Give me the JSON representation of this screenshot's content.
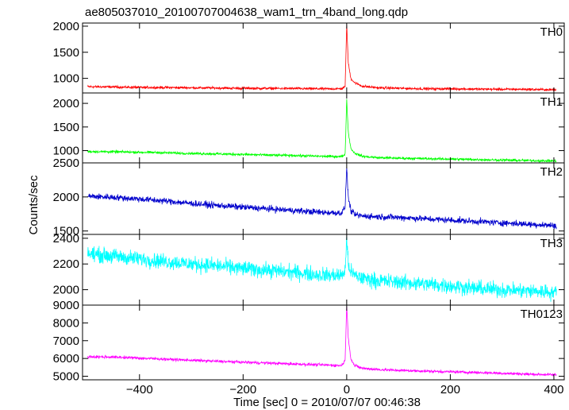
{
  "chart_data": {
    "title": "ae805037010_20100707004638_wam1_trn_4band_long.qdp",
    "xlabel": "Time [sec] 0 = 2010/07/07 00:46:38",
    "ylabel": "Counts/sec",
    "xlim": [
      -510,
      420
    ],
    "x_ticks": [
      -400,
      -200,
      0,
      200,
      400
    ],
    "x_tick_labels": [
      "−400",
      "−200",
      "0",
      "200",
      "400"
    ],
    "grid": false,
    "panels": [
      {
        "type": "line",
        "label": "TH0",
        "color": "#ff0000",
        "ylim": [
          720,
          2060
        ],
        "y_ticks": [
          1000,
          1500,
          2000
        ],
        "y_tick_labels": [
          "1000",
          "1500",
          "2000"
        ],
        "series": {
          "x": [
            -500,
            -450,
            -400,
            -350,
            -300,
            -250,
            -200,
            -150,
            -100,
            -50,
            -10,
            -3,
            0,
            3,
            8,
            15,
            30,
            60,
            100,
            150,
            200,
            250,
            300,
            350,
            405
          ],
          "y": [
            840,
            835,
            825,
            825,
            820,
            815,
            810,
            808,
            805,
            800,
            800,
            840,
            2030,
            1300,
            1000,
            920,
            850,
            820,
            810,
            800,
            800,
            795,
            790,
            790,
            780
          ],
          "noise": 18
        }
      },
      {
        "type": "line",
        "label": "TH1",
        "color": "#00ff00",
        "ylim": [
          740,
          2220
        ],
        "y_ticks": [
          1000,
          1500,
          2000
        ],
        "y_tick_labels": [
          "1000",
          "1500",
          "2000"
        ],
        "series": {
          "x": [
            -500,
            -450,
            -400,
            -350,
            -300,
            -250,
            -200,
            -150,
            -100,
            -50,
            -10,
            -3,
            0,
            3,
            8,
            15,
            30,
            60,
            100,
            150,
            200,
            250,
            300,
            350,
            405
          ],
          "y": [
            980,
            975,
            965,
            955,
            940,
            930,
            920,
            905,
            895,
            880,
            875,
            920,
            2080,
            1400,
            1050,
            950,
            880,
            850,
            840,
            830,
            820,
            810,
            800,
            790,
            780
          ],
          "noise": 20
        }
      },
      {
        "type": "line",
        "label": "TH2",
        "color": "#0000cc",
        "ylim": [
          1450,
          2500
        ],
        "y_ticks": [
          1500,
          2000,
          2500
        ],
        "y_tick_labels": [
          "1500",
          "2000",
          "2500"
        ],
        "series": {
          "x": [
            -500,
            -450,
            -400,
            -350,
            -300,
            -250,
            -200,
            -150,
            -100,
            -50,
            -10,
            -3,
            0,
            3,
            8,
            15,
            30,
            60,
            100,
            150,
            200,
            250,
            300,
            350,
            405
          ],
          "y": [
            2010,
            1995,
            1970,
            1940,
            1905,
            1875,
            1850,
            1825,
            1800,
            1775,
            1765,
            1850,
            2450,
            2000,
            1800,
            1740,
            1720,
            1710,
            1700,
            1680,
            1660,
            1640,
            1620,
            1600,
            1580
          ],
          "noise": 35
        }
      },
      {
        "type": "line",
        "label": "TH3",
        "color": "#00ffff",
        "ylim": [
          1880,
          2430
        ],
        "y_ticks": [
          2000,
          2200,
          2400
        ],
        "y_tick_labels": [
          "2000",
          "2200",
          "2400"
        ],
        "series": {
          "x": [
            -500,
            -450,
            -400,
            -350,
            -300,
            -250,
            -200,
            -150,
            -100,
            -50,
            -10,
            -3,
            0,
            3,
            8,
            15,
            30,
            60,
            100,
            150,
            200,
            250,
            300,
            350,
            405
          ],
          "y": [
            2280,
            2260,
            2240,
            2220,
            2200,
            2185,
            2165,
            2150,
            2135,
            2115,
            2110,
            2150,
            2400,
            2200,
            2140,
            2110,
            2090,
            2070,
            2060,
            2045,
            2030,
            2010,
            2000,
            1990,
            1980
          ],
          "noise": 45
        }
      },
      {
        "type": "line",
        "label": "TH0123",
        "color": "#ff00ff",
        "ylim": [
          4800,
          9000
        ],
        "y_ticks": [
          5000,
          6000,
          7000,
          8000,
          9000
        ],
        "y_tick_labels": [
          "5000",
          "6000",
          "7000",
          "8000",
          "9000"
        ],
        "series": {
          "x": [
            -500,
            -450,
            -400,
            -350,
            -300,
            -250,
            -200,
            -150,
            -100,
            -50,
            -10,
            -3,
            0,
            3,
            8,
            15,
            30,
            60,
            100,
            150,
            200,
            250,
            300,
            350,
            405
          ],
          "y": [
            6100,
            6080,
            6020,
            5960,
            5900,
            5840,
            5790,
            5740,
            5690,
            5640,
            5600,
            5900,
            9000,
            7200,
            6000,
            5600,
            5450,
            5380,
            5330,
            5290,
            5250,
            5210,
            5170,
            5120,
            5080
          ],
          "noise": 60
        }
      }
    ]
  }
}
